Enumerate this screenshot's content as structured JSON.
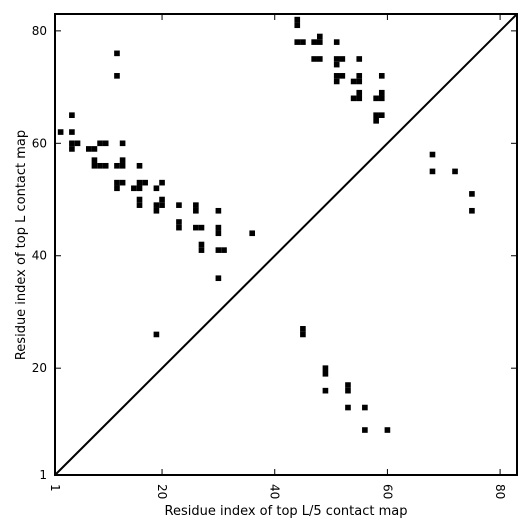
{
  "chart_data": {
    "type": "scatter",
    "xlabel": "Residue index of top L/5 contact map",
    "ylabel": "Residue index of top L contact map",
    "xlim": [
      1,
      83
    ],
    "ylim": [
      1,
      83
    ],
    "x_ticks": [
      1,
      20,
      40,
      60,
      80
    ],
    "y_ticks": [
      1,
      20,
      40,
      60,
      80
    ],
    "x_tick_labels": [
      "1",
      "20",
      "40",
      "60",
      "80"
    ],
    "y_tick_labels": [
      "1",
      "20",
      "40",
      "60",
      "80"
    ],
    "x_tick_rotation_deg": 90,
    "diagonal": [
      [
        1,
        1
      ],
      [
        83,
        83
      ]
    ],
    "grid": false,
    "marker": "square",
    "marker_color": "#000000",
    "series": [
      {
        "points": [
          [
            2,
            62
          ],
          [
            4,
            65
          ],
          [
            4,
            62
          ],
          [
            4,
            60
          ],
          [
            4,
            59
          ],
          [
            5,
            60
          ],
          [
            7,
            59
          ],
          [
            8,
            59
          ],
          [
            8,
            57
          ],
          [
            8,
            56
          ],
          [
            9,
            60
          ],
          [
            9,
            56
          ],
          [
            10,
            60
          ],
          [
            10,
            56
          ],
          [
            12,
            76
          ],
          [
            12,
            72
          ],
          [
            12,
            56
          ],
          [
            12,
            53
          ],
          [
            12,
            52
          ],
          [
            13,
            60
          ],
          [
            13,
            57
          ],
          [
            13,
            56
          ],
          [
            13,
            53
          ],
          [
            15,
            52
          ],
          [
            16,
            56
          ],
          [
            16,
            53
          ],
          [
            16,
            52
          ],
          [
            16,
            50
          ],
          [
            16,
            49
          ],
          [
            17,
            53
          ],
          [
            19,
            52
          ],
          [
            19,
            49
          ],
          [
            19,
            48
          ],
          [
            20,
            53
          ],
          [
            20,
            50
          ],
          [
            20,
            49
          ],
          [
            23,
            49
          ],
          [
            23,
            46
          ],
          [
            23,
            45
          ],
          [
            26,
            49
          ],
          [
            26,
            48
          ],
          [
            26,
            45
          ],
          [
            27,
            45
          ],
          [
            27,
            42
          ],
          [
            27,
            41
          ],
          [
            30,
            48
          ],
          [
            30,
            45
          ],
          [
            30,
            44
          ],
          [
            30,
            41
          ],
          [
            30,
            36
          ],
          [
            31,
            41
          ],
          [
            36,
            44
          ],
          [
            44,
            82
          ],
          [
            44,
            81
          ],
          [
            44,
            78
          ],
          [
            45,
            78
          ],
          [
            47,
            78
          ],
          [
            47,
            75
          ],
          [
            48,
            79
          ],
          [
            48,
            78
          ],
          [
            48,
            75
          ],
          [
            51,
            78
          ],
          [
            51,
            75
          ],
          [
            51,
            74
          ],
          [
            51,
            72
          ],
          [
            51,
            71
          ],
          [
            52,
            75
          ],
          [
            52,
            72
          ],
          [
            54,
            71
          ],
          [
            54,
            68
          ],
          [
            55,
            75
          ],
          [
            55,
            72
          ],
          [
            55,
            71
          ],
          [
            55,
            69
          ],
          [
            55,
            68
          ],
          [
            58,
            68
          ],
          [
            58,
            65
          ],
          [
            58,
            64
          ],
          [
            59,
            72
          ],
          [
            59,
            69
          ],
          [
            59,
            68
          ],
          [
            59,
            65
          ],
          [
            68,
            58
          ],
          [
            68,
            55
          ],
          [
            72,
            55
          ],
          [
            75,
            51
          ],
          [
            75,
            48
          ]
        ]
      },
      {
        "points": [
          [
            19,
            26
          ],
          [
            45,
            27
          ],
          [
            45,
            26
          ],
          [
            49,
            20
          ],
          [
            49,
            19
          ],
          [
            49,
            16
          ],
          [
            53,
            17
          ],
          [
            53,
            16
          ],
          [
            53,
            13
          ],
          [
            56,
            13
          ],
          [
            56,
            9
          ],
          [
            60,
            9
          ]
        ]
      }
    ]
  }
}
